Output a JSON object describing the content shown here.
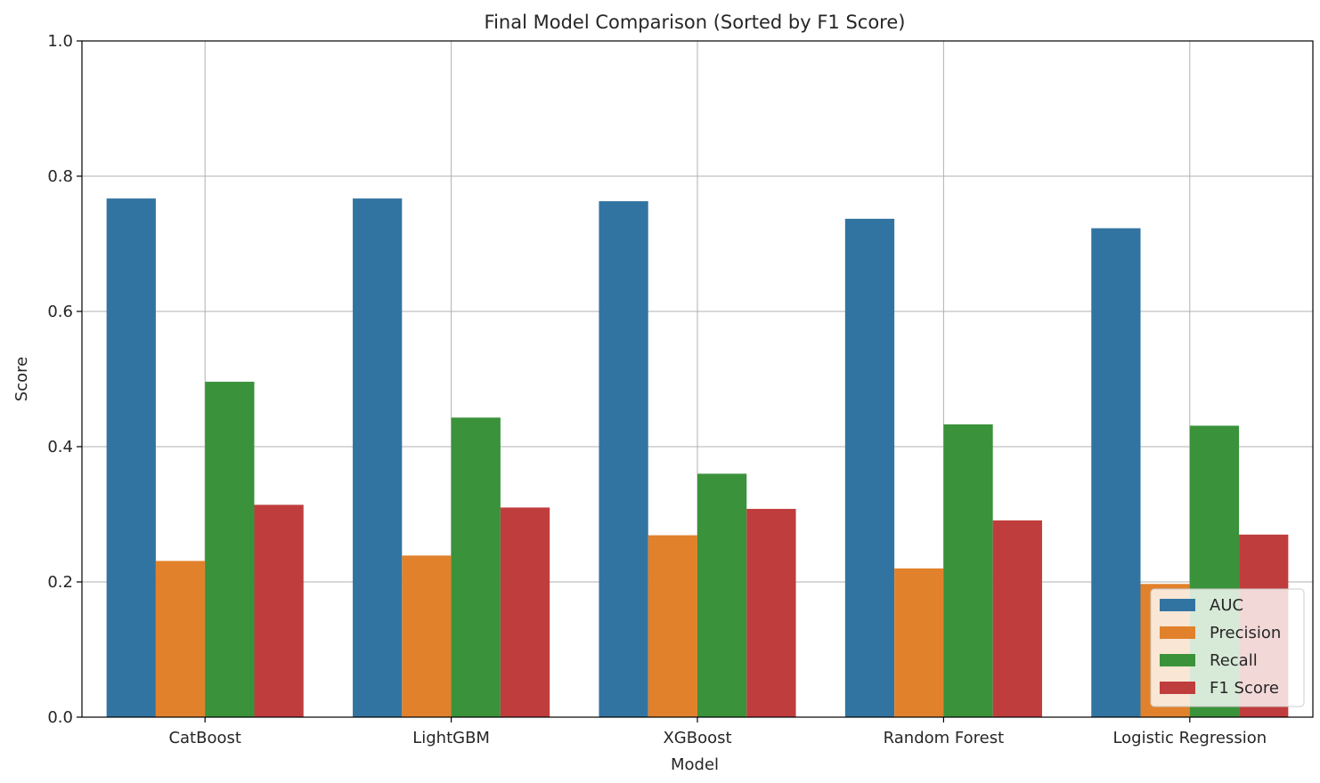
{
  "chart_data": {
    "type": "bar",
    "title": "Final Model Comparison (Sorted by F1 Score)",
    "xlabel": "Model",
    "ylabel": "Score",
    "ylim": [
      0,
      1.0
    ],
    "yticks": [
      "0.0",
      "0.2",
      "0.4",
      "0.6",
      "0.8",
      "1.0"
    ],
    "grid": true,
    "legend_position": "lower right",
    "categories": [
      "CatBoost",
      "LightGBM",
      "XGBoost",
      "Random Forest",
      "Logistic Regression"
    ],
    "series": [
      {
        "name": "AUC",
        "color": "#3274a1",
        "values": [
          0.767,
          0.767,
          0.763,
          0.737,
          0.723
        ]
      },
      {
        "name": "Precision",
        "color": "#e1812c",
        "values": [
          0.231,
          0.239,
          0.269,
          0.22,
          0.197
        ]
      },
      {
        "name": "Recall",
        "color": "#3a923a",
        "values": [
          0.496,
          0.443,
          0.36,
          0.433,
          0.431
        ]
      },
      {
        "name": "F1 Score",
        "color": "#c03d3e",
        "values": [
          0.314,
          0.31,
          0.308,
          0.291,
          0.27
        ]
      }
    ]
  }
}
